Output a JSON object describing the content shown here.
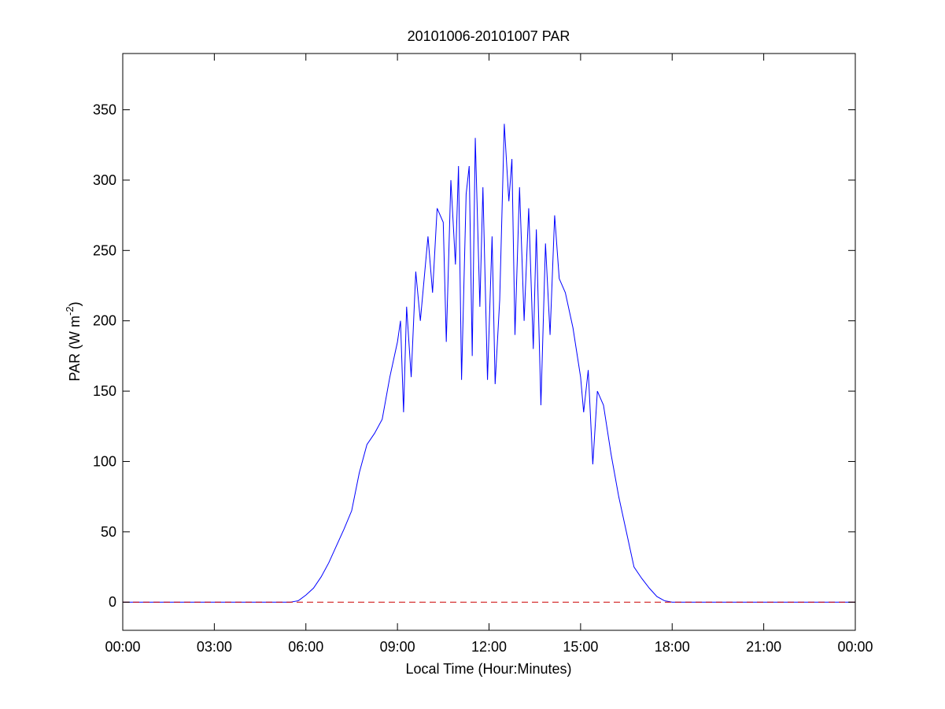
{
  "chart_data": {
    "type": "line",
    "title": "20101006-20101007 PAR",
    "x_label": "Local Time (Hour:Minutes)",
    "y_label": {
      "text": "PAR (W m",
      "sup": "-2",
      "end": ")"
    },
    "xlim": [
      0,
      24
    ],
    "ylim": [
      -20,
      390
    ],
    "xticks": [
      {
        "value": 0,
        "label": "00:00"
      },
      {
        "value": 3,
        "label": "03:00"
      },
      {
        "value": 6,
        "label": "06:00"
      },
      {
        "value": 9,
        "label": "09:00"
      },
      {
        "value": 12,
        "label": "12:00"
      },
      {
        "value": 15,
        "label": "15:00"
      },
      {
        "value": 18,
        "label": "18:00"
      },
      {
        "value": 21,
        "label": "21:00"
      },
      {
        "value": 24,
        "label": "00:00"
      }
    ],
    "yticks": [
      0,
      50,
      100,
      150,
      200,
      250,
      300,
      350
    ],
    "series": [
      {
        "color": "#0000ff",
        "dashed": false,
        "x": [
          0,
          5.5,
          5.75,
          6,
          6.25,
          6.5,
          6.75,
          7,
          7.25,
          7.5,
          7.75,
          8,
          8.25,
          8.5,
          8.75,
          9,
          9.1,
          9.2,
          9.3,
          9.45,
          9.6,
          9.75,
          10,
          10.15,
          10.3,
          10.5,
          10.6,
          10.75,
          10.9,
          11,
          11.1,
          11.25,
          11.35,
          11.45,
          11.55,
          11.7,
          11.8,
          11.95,
          12.1,
          12.2,
          12.35,
          12.5,
          12.65,
          12.75,
          12.85,
          13,
          13.15,
          13.3,
          13.45,
          13.55,
          13.7,
          13.85,
          14,
          14.15,
          14.3,
          14.5,
          14.75,
          15,
          15.1,
          15.25,
          15.4,
          15.55,
          15.75,
          16,
          16.25,
          16.5,
          16.75,
          17,
          17.25,
          17.5,
          17.75,
          18,
          24
        ],
        "values": [
          0,
          0,
          1,
          5,
          10,
          18,
          28,
          40,
          52,
          65,
          92,
          112,
          120,
          130,
          160,
          185,
          200,
          135,
          210,
          160,
          235,
          200,
          260,
          220,
          280,
          270,
          185,
          300,
          240,
          310,
          158,
          290,
          310,
          175,
          330,
          210,
          295,
          158,
          260,
          155,
          215,
          340,
          285,
          315,
          190,
          295,
          200,
          280,
          180,
          265,
          140,
          255,
          190,
          275,
          230,
          220,
          195,
          160,
          135,
          165,
          98,
          150,
          140,
          105,
          75,
          50,
          25,
          17,
          10,
          4,
          1,
          0,
          0
        ]
      },
      {
        "color": "#cc0000",
        "dashed": true,
        "x": [
          0,
          24
        ],
        "values": [
          0,
          0
        ]
      }
    ]
  }
}
